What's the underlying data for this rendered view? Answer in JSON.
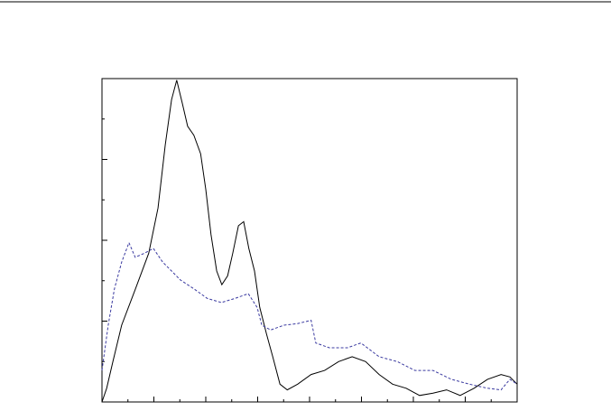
{
  "chart_data": {
    "type": "line",
    "xlim": [
      0,
      80
    ],
    "ylim": [
      0,
      40
    ],
    "xticks": [
      0,
      10,
      20,
      30,
      40,
      50,
      60,
      70,
      80
    ],
    "yticks": [
      0,
      10,
      20,
      30,
      40
    ],
    "xminorticks": [
      5,
      15,
      25,
      35,
      45,
      55,
      65,
      75
    ],
    "yminorticks": [
      5,
      15,
      25,
      35
    ],
    "series": [
      {
        "color": "#000000",
        "x": [
          0,
          0.9,
          2.1,
          3.8,
          6.4,
          9.0,
          10.8,
          12.2,
          13.4,
          14.4,
          15.5,
          16.5,
          17.7,
          19.0,
          20.0,
          21.0,
          22.1,
          23.1,
          24.2,
          25.2,
          26.3,
          27.3,
          28.3,
          29.4,
          30.4,
          31.7,
          32.9,
          34.3,
          35.7,
          37.7,
          40.3,
          42.9,
          45.6,
          48.2,
          50.8,
          53.4,
          56.0,
          58.6,
          61.2,
          63.8,
          66.4,
          69.0,
          71.7,
          74.3,
          76.9,
          78.6,
          80
        ],
        "values": [
          0,
          1.7,
          5.0,
          9.5,
          13.9,
          18.4,
          24.0,
          31.8,
          37.4,
          39.8,
          36.9,
          34.1,
          33.0,
          30.7,
          26.3,
          20.7,
          16.2,
          14.5,
          15.6,
          18.4,
          21.8,
          22.3,
          19.0,
          16.2,
          11.7,
          8.4,
          5.6,
          2.2,
          1.5,
          2.2,
          3.4,
          3.9,
          5.0,
          5.6,
          5.0,
          3.4,
          2.2,
          1.7,
          0.8,
          1.1,
          1.5,
          0.8,
          1.7,
          2.8,
          3.4,
          3.1,
          2.2
        ]
      },
      {
        "color": "#3a3aa0",
        "dashed": true,
        "x": [
          0,
          1.2,
          2.4,
          3.8,
          5.2,
          6.4,
          8.2,
          9.9,
          11.7,
          13.4,
          15.1,
          17.7,
          20.3,
          23.0,
          25.6,
          28.2,
          29.9,
          30.8,
          32.5,
          35.1,
          37.7,
          40.3,
          41.2,
          43.8,
          47.3,
          49.9,
          53.4,
          56.9,
          60.3,
          63.8,
          67.3,
          70.8,
          74.3,
          76.9,
          78.6,
          80
        ],
        "values": [
          3.9,
          9.5,
          14.0,
          17.3,
          19.7,
          17.9,
          18.4,
          19.0,
          17.3,
          16.2,
          15.1,
          14.0,
          12.8,
          12.3,
          12.8,
          13.4,
          11.7,
          9.5,
          8.9,
          9.5,
          9.7,
          10.1,
          7.3,
          6.7,
          6.7,
          7.3,
          5.6,
          5.0,
          3.9,
          3.9,
          2.8,
          2.2,
          1.7,
          1.5,
          2.8,
          2.2
        ]
      }
    ]
  }
}
